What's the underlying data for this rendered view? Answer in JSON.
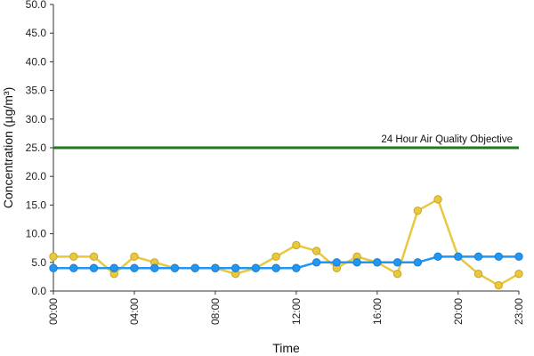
{
  "chart_data": {
    "type": "line",
    "xlabel": "Time",
    "ylabel": "Concentration (µg/m³)",
    "ylim": [
      0,
      50
    ],
    "y_ticks": [
      "0.0",
      "5.0",
      "10.0",
      "15.0",
      "20.0",
      "25.0",
      "30.0",
      "35.0",
      "40.0",
      "45.0",
      "50.0"
    ],
    "x_tick_labels": [
      "00:00",
      "04:00",
      "08:00",
      "12:00",
      "16:00",
      "20:00",
      "23:00"
    ],
    "x": [
      "00:00",
      "01:00",
      "02:00",
      "03:00",
      "04:00",
      "05:00",
      "06:00",
      "07:00",
      "08:00",
      "09:00",
      "10:00",
      "11:00",
      "12:00",
      "13:00",
      "14:00",
      "15:00",
      "16:00",
      "17:00",
      "18:00",
      "19:00",
      "20:00",
      "21:00",
      "22:00",
      "23:00"
    ],
    "series": [
      {
        "color": "#e8c840",
        "values": [
          6,
          6,
          6,
          3,
          6,
          5,
          4,
          4,
          4,
          3,
          4,
          6,
          8,
          7,
          4,
          6,
          5,
          3,
          14,
          16,
          6,
          3,
          1,
          3
        ]
      },
      {
        "color": "#2196f3",
        "values": [
          4,
          4,
          4,
          4,
          4,
          4,
          4,
          4,
          4,
          4,
          4,
          4,
          4,
          5,
          5,
          5,
          5,
          5,
          5,
          6,
          6,
          6,
          6,
          6
        ]
      }
    ],
    "reference_line": {
      "label": "24 Hour Air Quality Objective",
      "value": 25,
      "color": "#1f7a1f"
    },
    "grid": false,
    "legend": "none"
  }
}
